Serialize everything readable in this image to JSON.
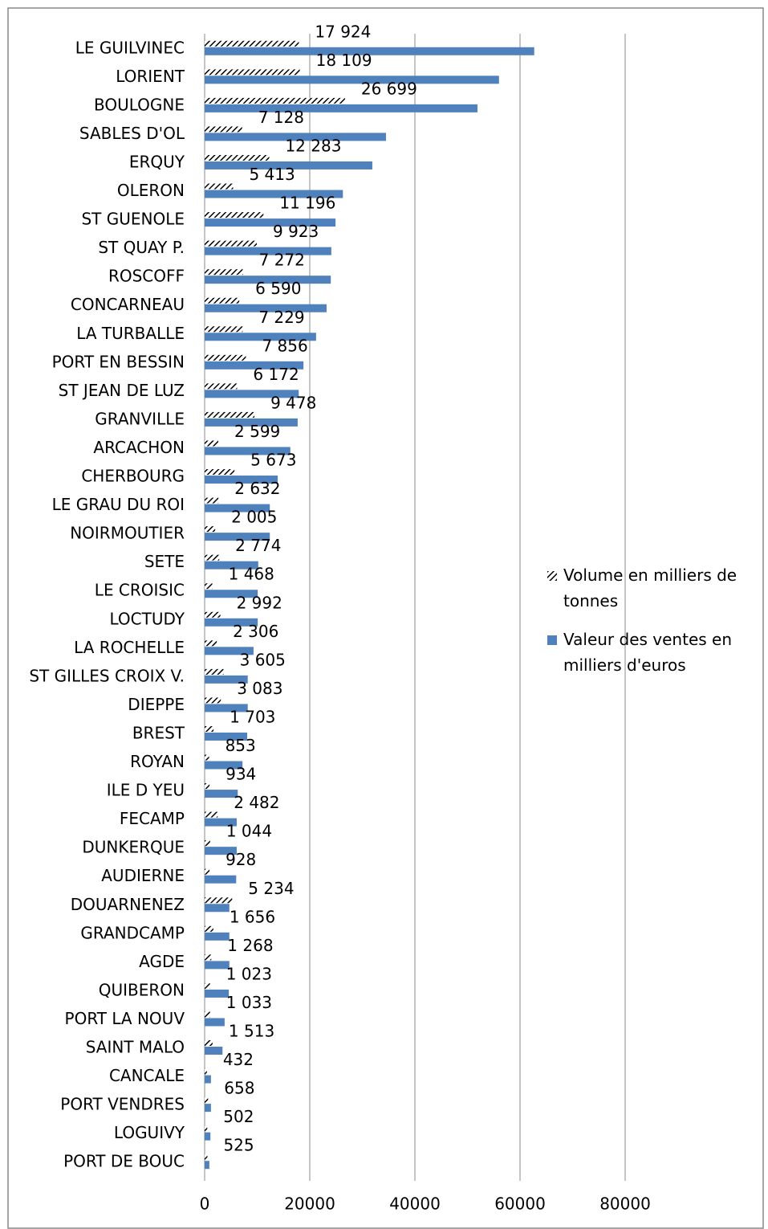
{
  "chart_data": {
    "type": "hbar",
    "categories": [
      "LE GUILVINEC",
      "LORIENT",
      "BOULOGNE",
      "SABLES D'OL",
      "ERQUY",
      "OLERON",
      "ST GUENOLE",
      "ST QUAY P.",
      "ROSCOFF",
      "CONCARNEAU",
      "LA TURBALLE",
      "PORT EN BESSIN",
      "ST JEAN DE LUZ",
      "GRANVILLE",
      "ARCACHON",
      "CHERBOURG",
      "LE GRAU DU ROI",
      "NOIRMOUTIER",
      "SETE",
      "LE CROISIC",
      "LOCTUDY",
      "LA ROCHELLE",
      "ST GILLES CROIX V.",
      "DIEPPE",
      "BREST",
      "ROYAN",
      "ILE D YEU",
      "FECAMP",
      "DUNKERQUE",
      "AUDIERNE",
      "DOUARNENEZ",
      "GRANDCAMP",
      "AGDE",
      "QUIBERON",
      "PORT LA NOUV",
      "SAINT MALO",
      "CANCALE",
      "PORT VENDRES",
      "LOGUIVY",
      "PORT DE BOUC"
    ],
    "series": [
      {
        "name": "Volume en milliers de tonnes",
        "color": "#000000",
        "pattern": "hatch",
        "values": [
          17924,
          18109,
          26699,
          7128,
          12283,
          5413,
          11196,
          9923,
          7272,
          6590,
          7229,
          7856,
          6172,
          9478,
          2599,
          5673,
          2632,
          2005,
          2774,
          1468,
          2992,
          2306,
          3605,
          3083,
          1703,
          853,
          934,
          2482,
          1044,
          928,
          5234,
          1656,
          1268,
          1023,
          1033,
          1513,
          432,
          658,
          502,
          525
        ],
        "value_labels": [
          "17 924",
          "18 109",
          "26 699",
          "7 128",
          "12 283",
          "5 413",
          "11 196",
          "9 923",
          "7 272",
          "6 590",
          "7 229",
          "7 856",
          "6 172",
          "9 478",
          "2 599",
          "5 673",
          "2 632",
          "2 005",
          "2 774",
          "1 468",
          "2 992",
          "2 306",
          "3 605",
          "3 083",
          "1 703",
          "853",
          "934",
          "2 482",
          "1 044",
          "928",
          "5 234",
          "1 656",
          "1 268",
          "1 023",
          "1 033",
          "1 513",
          "432",
          "658",
          "502",
          "525"
        ]
      },
      {
        "name": "Valeur des ventes en milliers d'euros",
        "color": "#4f81bd",
        "values": [
          62700,
          56000,
          51900,
          34500,
          31900,
          26300,
          24900,
          24100,
          24000,
          23200,
          21200,
          18800,
          17900,
          17700,
          16300,
          13900,
          12400,
          12400,
          10200,
          10100,
          10100,
          9300,
          8200,
          8200,
          8100,
          7200,
          6300,
          6100,
          6100,
          6000,
          4700,
          4700,
          4700,
          4600,
          3800,
          3400,
          1200,
          1200,
          1100,
          900
        ]
      }
    ],
    "xlim": [
      0,
      80000
    ],
    "xticks": [
      0,
      20000,
      40000,
      60000,
      80000
    ],
    "grid": true,
    "legend": "right"
  }
}
